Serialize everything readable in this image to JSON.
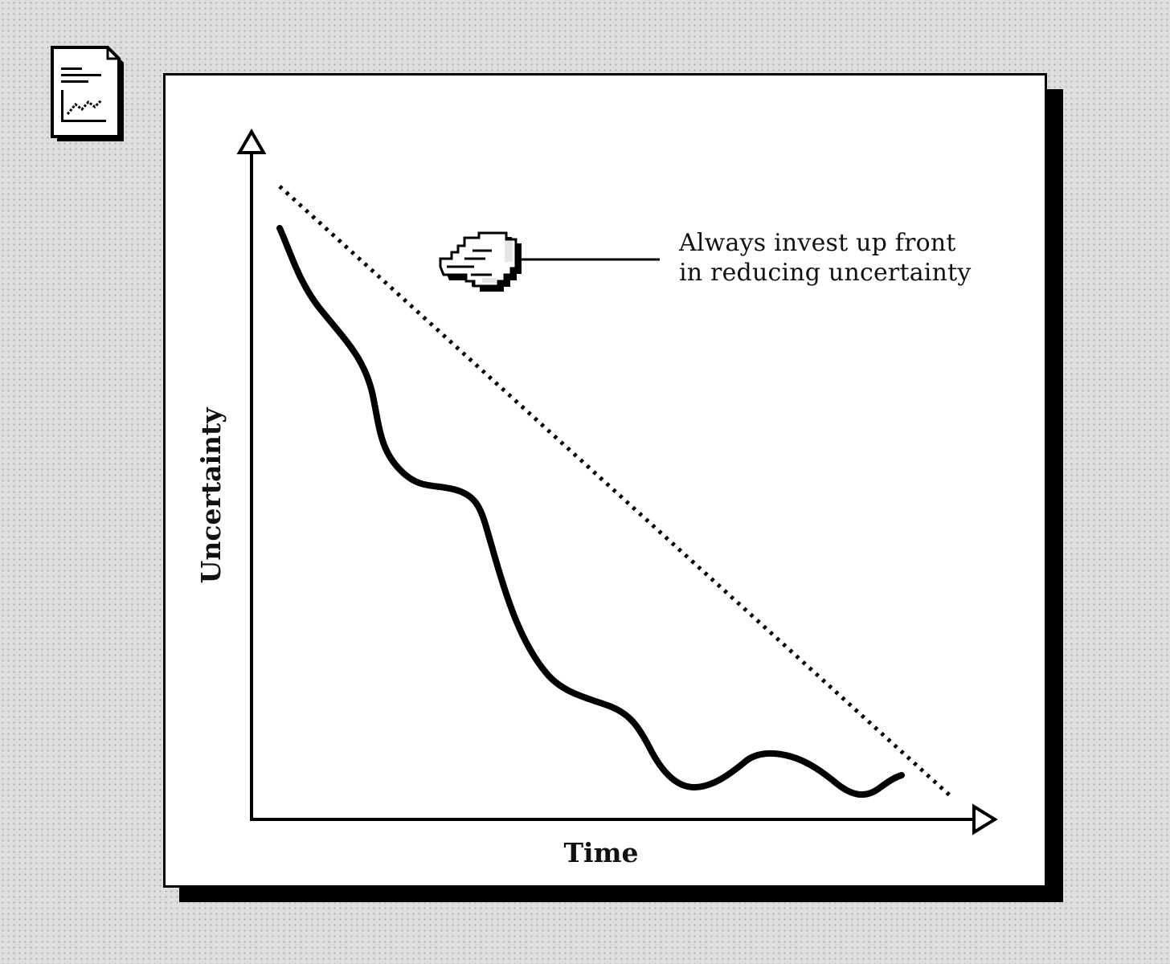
{
  "icons": {
    "document": "chart-document-icon",
    "pointer": "pointing-hand-icon"
  },
  "colors": {
    "background": "#dedede",
    "ink": "#000000",
    "window": "#ffffff"
  },
  "annotation": {
    "lines": [
      "Always invest up front",
      "in reducing uncertainty"
    ]
  },
  "chart_data": {
    "type": "line",
    "xlabel": "Time",
    "ylabel": "Uncertainty",
    "grid": false,
    "series": [
      {
        "style": "solid"
      },
      {
        "style": "dotted"
      }
    ]
  }
}
